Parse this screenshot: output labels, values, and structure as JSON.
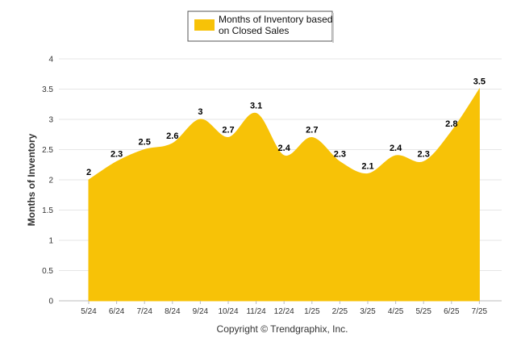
{
  "chart_data": {
    "type": "area",
    "categories": [
      "5/24",
      "6/24",
      "7/24",
      "8/24",
      "9/24",
      "10/24",
      "11/24",
      "12/24",
      "1/25",
      "2/25",
      "3/25",
      "4/25",
      "5/25",
      "6/25",
      "7/25"
    ],
    "series": [
      {
        "name": "Months of Inventory based on Closed Sales",
        "values": [
          2,
          2.3,
          2.5,
          2.6,
          3,
          2.7,
          3.1,
          2.4,
          2.7,
          2.3,
          2.1,
          2.4,
          2.3,
          2.8,
          3.5
        ],
        "color": "#F7C207"
      }
    ],
    "legend_lines": [
      "Months of Inventory based",
      "on Closed Sales"
    ],
    "ylabel": "Months of Inventory",
    "xlabel": "",
    "ylim": [
      0,
      4
    ],
    "yticks": [
      "0",
      "0.5",
      "1",
      "1.5",
      "2",
      "2.5",
      "3",
      "3.5",
      "4"
    ],
    "grid": true,
    "legend_position": "top-center",
    "credit": "Copyright © Trendgraphix, Inc."
  }
}
